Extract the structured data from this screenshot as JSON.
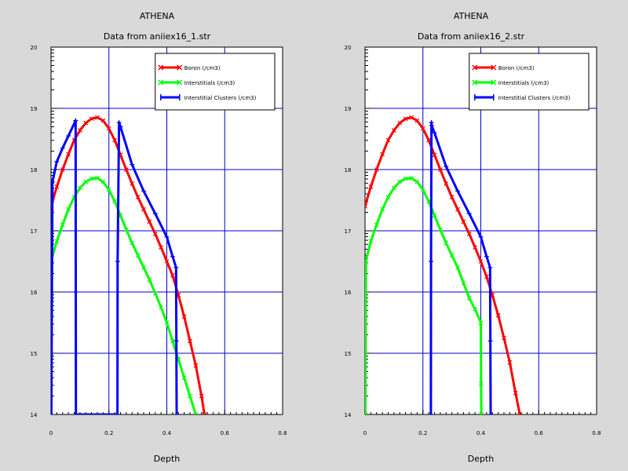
{
  "chart_data": [
    {
      "type": "line",
      "title": "ATHENA",
      "subtitle": "Data from aniiex16_1.str",
      "xlabel": "Depth",
      "ylabel": "",
      "xlim": [
        0,
        0.8
      ],
      "ylim": [
        14,
        20
      ],
      "x_ticks": [
        "0",
        "0.2",
        "0.4",
        "0.6",
        "0.8"
      ],
      "y_ticks": [
        "14",
        "15",
        "16",
        "17",
        "18",
        "19",
        "20"
      ],
      "grid": true,
      "legend_position": "top-right",
      "series": [
        {
          "name": "Boron (/cm3)",
          "color": "#ff0000",
          "marker": "x",
          "x": [
            0,
            0.02,
            0.04,
            0.06,
            0.08,
            0.1,
            0.12,
            0.14,
            0.16,
            0.18,
            0.2,
            0.22,
            0.24,
            0.26,
            0.28,
            0.3,
            0.32,
            0.34,
            0.36,
            0.38,
            0.4,
            0.42,
            0.44,
            0.46,
            0.48,
            0.5,
            0.52,
            0.53
          ],
          "y": [
            17.4,
            17.72,
            18.0,
            18.25,
            18.48,
            18.64,
            18.76,
            18.83,
            18.85,
            18.8,
            18.67,
            18.48,
            18.24,
            18.0,
            17.77,
            17.55,
            17.35,
            17.15,
            16.95,
            16.73,
            16.5,
            16.27,
            15.95,
            15.6,
            15.2,
            14.8,
            14.3,
            14.0
          ]
        },
        {
          "name": "Interstitials (/cm3)",
          "color": "#00ff00",
          "marker": "x",
          "x": [
            0,
            0.02,
            0.04,
            0.06,
            0.08,
            0.1,
            0.12,
            0.14,
            0.16,
            0.18,
            0.2,
            0.22,
            0.24,
            0.26,
            0.28,
            0.3,
            0.32,
            0.34,
            0.36,
            0.38,
            0.4,
            0.42,
            0.44,
            0.46,
            0.48,
            0.5
          ],
          "y": [
            16.5,
            16.83,
            17.1,
            17.35,
            17.55,
            17.7,
            17.8,
            17.85,
            17.86,
            17.8,
            17.67,
            17.48,
            17.25,
            17.02,
            16.8,
            16.6,
            16.4,
            16.2,
            15.98,
            15.75,
            15.5,
            15.2,
            14.9,
            14.6,
            14.3,
            14.0
          ]
        },
        {
          "name": "Interstitial Clusters (/cm3)",
          "color": "#0000ff",
          "marker": "+",
          "x": [
            0.001,
            0.005,
            0.02,
            0.04,
            0.06,
            0.085,
            0.0855,
            0.086,
            0.2295,
            0.23,
            0.235,
            0.24,
            0.28,
            0.32,
            0.36,
            0.4,
            0.42,
            0.432,
            0.433,
            0.434
          ],
          "y": [
            14.0,
            17.8,
            18.13,
            18.35,
            18.55,
            18.8,
            16.0,
            14.0,
            14.0,
            16.5,
            18.77,
            18.7,
            18.08,
            17.65,
            17.28,
            16.9,
            16.58,
            16.4,
            15.2,
            14.0
          ]
        }
      ]
    },
    {
      "type": "line",
      "title": "ATHENA",
      "subtitle": "Data from aniiex16_2.str",
      "xlabel": "Depth",
      "ylabel": "",
      "xlim": [
        0,
        0.8
      ],
      "ylim": [
        14,
        20
      ],
      "x_ticks": [
        "0",
        "0.2",
        "0.4",
        "0.6",
        "0.8"
      ],
      "y_ticks": [
        "14",
        "15",
        "16",
        "17",
        "18",
        "19",
        "20"
      ],
      "grid": true,
      "legend_position": "top-right",
      "series": [
        {
          "name": "Boron (/cm3)",
          "color": "#ff0000",
          "marker": "x",
          "x": [
            0,
            0.02,
            0.04,
            0.06,
            0.08,
            0.1,
            0.12,
            0.14,
            0.16,
            0.18,
            0.2,
            0.22,
            0.24,
            0.26,
            0.28,
            0.3,
            0.32,
            0.34,
            0.36,
            0.38,
            0.4,
            0.42,
            0.44,
            0.46,
            0.48,
            0.5,
            0.52,
            0.535
          ],
          "y": [
            17.4,
            17.72,
            18.0,
            18.25,
            18.48,
            18.64,
            18.76,
            18.83,
            18.85,
            18.8,
            18.67,
            18.48,
            18.24,
            18.0,
            17.77,
            17.55,
            17.35,
            17.15,
            16.95,
            16.73,
            16.5,
            16.25,
            15.95,
            15.62,
            15.25,
            14.85,
            14.35,
            14.0
          ]
        },
        {
          "name": "Interstitials (/cm3)",
          "color": "#00ff00",
          "marker": "x",
          "x": [
            0.001,
            0.003,
            0.02,
            0.04,
            0.06,
            0.08,
            0.1,
            0.12,
            0.14,
            0.16,
            0.18,
            0.2,
            0.22,
            0.24,
            0.26,
            0.28,
            0.3,
            0.32,
            0.34,
            0.36,
            0.38,
            0.4,
            0.401,
            0.402
          ],
          "y": [
            14.0,
            16.5,
            16.83,
            17.1,
            17.35,
            17.55,
            17.7,
            17.8,
            17.85,
            17.86,
            17.8,
            17.67,
            17.48,
            17.25,
            17.02,
            16.8,
            16.6,
            16.4,
            16.15,
            15.9,
            15.72,
            15.5,
            14.5,
            14.0
          ]
        },
        {
          "name": "Interstitial Clusters (/cm3)",
          "color": "#0000ff",
          "marker": "+",
          "x": [
            0.2275,
            0.228,
            0.2295,
            0.23,
            0.24,
            0.28,
            0.32,
            0.36,
            0.4,
            0.42,
            0.432,
            0.433,
            0.434
          ],
          "y": [
            14.0,
            16.5,
            18.77,
            18.72,
            18.6,
            18.05,
            17.65,
            17.28,
            16.9,
            16.58,
            16.4,
            15.2,
            14.0
          ]
        }
      ]
    }
  ]
}
